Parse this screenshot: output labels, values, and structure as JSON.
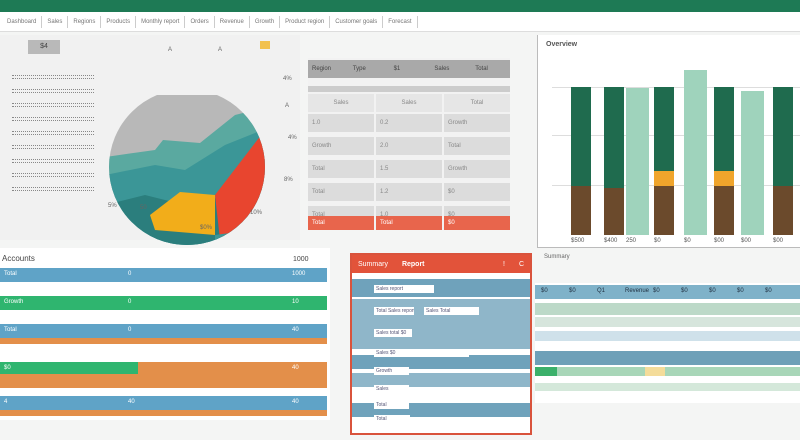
{
  "tabs": [
    "Dashboard",
    "Sales",
    "Regions",
    "Products",
    "Monthly report",
    "Orders",
    "Revenue",
    "Growth",
    "Product region",
    "Customer goals",
    "Forecast"
  ],
  "pie_panel": {
    "button": "$4",
    "labels": [
      "A",
      "A",
      "4%",
      "A",
      "4%",
      "8%",
      "5%",
      "50",
      "10%",
      "$0%"
    ]
  },
  "table": {
    "header": [
      "Region",
      "Type",
      "$1",
      "Sales",
      "Total"
    ],
    "columns": [
      "Sales",
      "Sales",
      "Total"
    ],
    "rows": [
      [
        "1.0",
        "0.2",
        "Growth"
      ],
      [
        "Growth",
        "2.0",
        "Total"
      ],
      [
        "Total",
        "1.5",
        "Growth"
      ],
      [
        "Total",
        "1.2",
        "$0"
      ],
      [
        "Total",
        "1.0",
        "$0"
      ]
    ],
    "footer": [
      "Total",
      "Total",
      "$0"
    ]
  },
  "bar_chart": {
    "title": "Overview",
    "bars": [
      {
        "kind": "dark",
        "green": 0.67,
        "orange": 0,
        "brown": 0.33
      },
      {
        "kind": "dark",
        "green": 0.68,
        "orange": 0,
        "brown": 0.32
      },
      {
        "kind": "light",
        "total": 0.89
      },
      {
        "kind": "dark",
        "green": 0.57,
        "orange": 0.1,
        "brown": 0.33
      },
      {
        "kind": "light",
        "total": 1.0
      },
      {
        "kind": "dark",
        "green": 0.57,
        "orange": 0.1,
        "brown": 0.33
      },
      {
        "kind": "light",
        "total": 0.87
      },
      {
        "kind": "dark",
        "green": 0.67,
        "orange": 0,
        "brown": 0.33
      }
    ],
    "xlabels": [
      "$500",
      "$400",
      "250",
      "$0",
      "$0",
      "$00",
      "$00",
      "$00"
    ],
    "footer": "Summary",
    "colors": {
      "dark": "#1f6b4e",
      "light": "#9fd3bc",
      "orange": "#f0a52c",
      "brown": "#6b4a2c"
    }
  },
  "bottom_left": {
    "title": "Accounts",
    "value": "1000",
    "rows": [
      [
        "Total",
        "0",
        "1000"
      ],
      [
        "Growth",
        "0",
        "10"
      ],
      [
        "Total",
        "0",
        "40"
      ],
      [
        "$0",
        "",
        "40"
      ],
      [
        "4",
        "40",
        "40"
      ]
    ]
  },
  "red_panel": {
    "title": "Summary",
    "subtitle": "Report",
    "icons": [
      "!",
      "C"
    ],
    "rows": [
      "Sales report",
      "Total  Sales report",
      "Sales total $0",
      "Sales $0",
      "Growth",
      "Sales",
      "Total",
      "Total",
      "Sales  Total"
    ]
  },
  "timeline": {
    "labels": [
      "$0",
      "$0",
      "Q1",
      "Revenue",
      "$0",
      "$0",
      "$0",
      "$0",
      "$0"
    ]
  }
}
